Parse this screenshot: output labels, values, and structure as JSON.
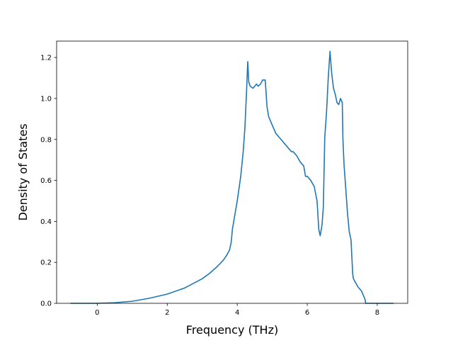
{
  "chart_data": {
    "type": "line",
    "title": "",
    "xlabel": "Frequency (THz)",
    "ylabel": "Density of States",
    "xlim": [
      -1.16,
      8.87
    ],
    "ylim": [
      0,
      1.28
    ],
    "xticks": [
      0,
      2,
      4,
      6,
      8
    ],
    "yticks": [
      0.0,
      0.2,
      0.4,
      0.6,
      0.8,
      1.0,
      1.2
    ],
    "grid": false,
    "legend": "none",
    "series": [
      {
        "color": "#1f77b4",
        "x": [
          -0.75,
          -0.5,
          0,
          0.5,
          1.0,
          1.5,
          2.0,
          2.5,
          3.0,
          3.2,
          3.4,
          3.6,
          3.7,
          3.78,
          3.83,
          3.86,
          3.9,
          4.0,
          4.1,
          4.17,
          4.22,
          4.27,
          4.3,
          4.33,
          4.37,
          4.45,
          4.5,
          4.55,
          4.6,
          4.66,
          4.7,
          4.72,
          4.75,
          4.8,
          4.85,
          4.9,
          5.0,
          5.1,
          5.2,
          5.3,
          5.4,
          5.5,
          5.55,
          5.6,
          5.7,
          5.8,
          5.9,
          5.95,
          6.0,
          6.1,
          6.2,
          6.28,
          6.33,
          6.37,
          6.42,
          6.46,
          6.5,
          6.55,
          6.6,
          6.65,
          6.7,
          6.75,
          6.8,
          6.85,
          6.9,
          6.95,
          7.0,
          7.02,
          7.05,
          7.1,
          7.15,
          7.2,
          7.25,
          7.3,
          7.32,
          7.35,
          7.45,
          7.55,
          7.6,
          7.65,
          7.67,
          7.7,
          8.0,
          8.3,
          8.45
        ],
        "y": [
          0.0,
          0.0,
          0.0,
          0.003,
          0.01,
          0.025,
          0.045,
          0.075,
          0.12,
          0.145,
          0.175,
          0.21,
          0.235,
          0.26,
          0.3,
          0.36,
          0.4,
          0.5,
          0.62,
          0.74,
          0.86,
          1.05,
          1.18,
          1.08,
          1.06,
          1.05,
          1.06,
          1.07,
          1.06,
          1.07,
          1.08,
          1.09,
          1.09,
          1.09,
          0.96,
          0.91,
          0.87,
          0.83,
          0.81,
          0.79,
          0.77,
          0.75,
          0.74,
          0.74,
          0.72,
          0.69,
          0.67,
          0.62,
          0.62,
          0.6,
          0.57,
          0.5,
          0.36,
          0.33,
          0.38,
          0.47,
          0.81,
          0.93,
          1.1,
          1.23,
          1.12,
          1.05,
          1.02,
          0.98,
          0.97,
          1.0,
          0.98,
          0.8,
          0.68,
          0.56,
          0.44,
          0.35,
          0.31,
          0.14,
          0.12,
          0.11,
          0.08,
          0.06,
          0.04,
          0.02,
          0.0,
          0.0,
          0.0,
          0.0,
          0.0
        ]
      }
    ]
  }
}
